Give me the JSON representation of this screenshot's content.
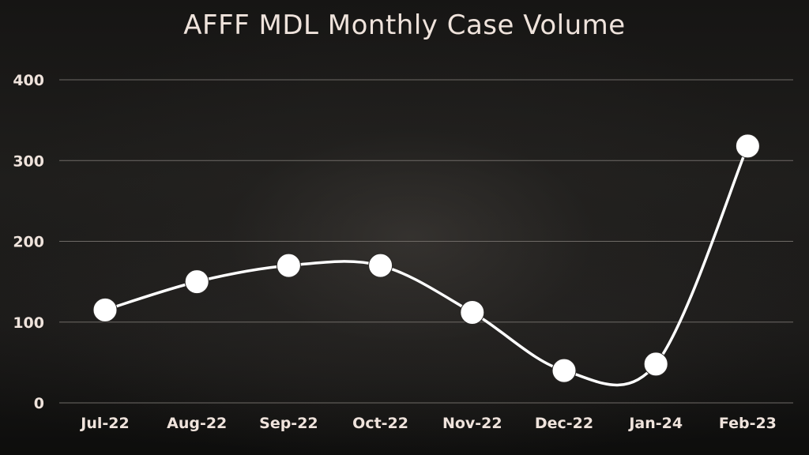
{
  "chart_data": {
    "type": "line",
    "title": "AFFF MDL Monthly Case Volume",
    "xlabel": "",
    "ylabel": "",
    "categories": [
      "Jul-22",
      "Aug-22",
      "Sep-22",
      "Oct-22",
      "Nov-22",
      "Dec-22",
      "Jan-24",
      "Feb-23"
    ],
    "series": [
      {
        "values": [
          115,
          150,
          170,
          170,
          112,
          40,
          48,
          318
        ]
      }
    ],
    "ylim": [
      0,
      400
    ],
    "yticks": [
      0,
      100,
      200,
      300,
      400
    ],
    "grid": true,
    "smooth": true,
    "colors": {
      "line": "#ffffff",
      "marker": "#ffffff",
      "text": "#efe3dc",
      "grid": "#6e6a66"
    }
  }
}
